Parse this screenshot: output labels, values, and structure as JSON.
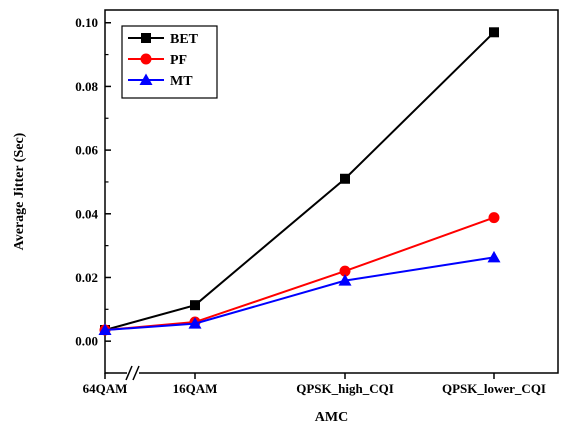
{
  "chart_data": {
    "type": "line",
    "xlabel": "AMC",
    "ylabel": "Average Jitter (Sec)",
    "categories": [
      "64QAM",
      "16QAM",
      "QPSK_high_CQI",
      "QPSK_lower_CQI"
    ],
    "ylim": [
      -0.01,
      0.104
    ],
    "yticks": [
      0.0,
      0.02,
      0.04,
      0.06,
      0.08,
      0.1
    ],
    "ytick_labels": [
      "0.00",
      "0.02",
      "0.04",
      "0.06",
      "0.08",
      "0.10"
    ],
    "axis_break": "between 64QAM and 16QAM",
    "legend_position": "top-left",
    "grid": false,
    "series": [
      {
        "name": "BET",
        "color": "#000000",
        "marker": "square",
        "values": [
          0.0035,
          0.0113,
          0.051,
          0.097
        ]
      },
      {
        "name": "PF",
        "color": "#ff0000",
        "marker": "circle",
        "values": [
          0.0035,
          0.006,
          0.022,
          0.0388
        ]
      },
      {
        "name": "MT",
        "color": "#0000ff",
        "marker": "triangle",
        "values": [
          0.0035,
          0.0055,
          0.019,
          0.0263
        ]
      }
    ]
  }
}
